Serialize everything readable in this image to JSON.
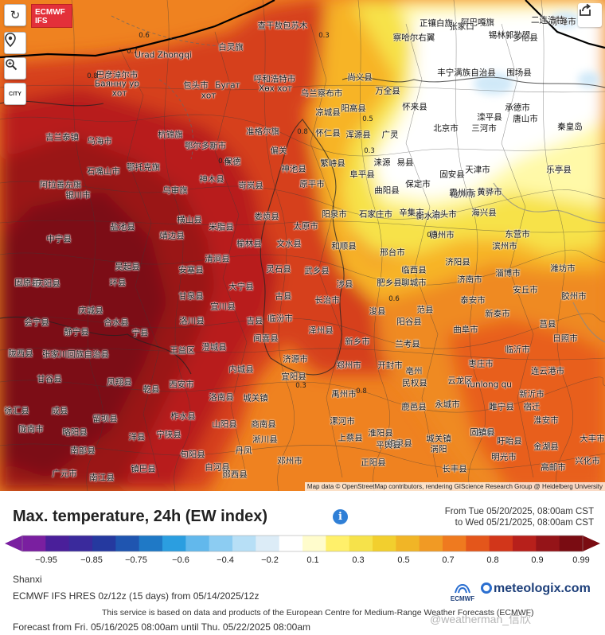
{
  "header": {
    "logo_line1": "ECMWF",
    "logo_line2": "IFS"
  },
  "controls": [
    {
      "name": "refresh-button",
      "icon": "refresh-icon",
      "glyph": "↻"
    },
    {
      "name": "location-button",
      "icon": "location-pin-icon",
      "glyph": "⚲"
    },
    {
      "name": "zoom-button",
      "icon": "magnifier-icon",
      "glyph": "🔍"
    },
    {
      "name": "city-toggle-button",
      "icon": "city-icon",
      "glyph": "CITY"
    }
  ],
  "share_icon": "share-icon",
  "map": {
    "attribution": "Map data © OpenStreetMap contributors, rendering GIScience Research Group @ Heidelberg University",
    "cities": [
      [
        "正镶白旗",
        548,
        30
      ],
      [
        "阿巴嘎旗",
        600,
        29
      ],
      [
        "赤峰市",
        708,
        28
      ],
      [
        "二连浩特",
        688,
        26
      ],
      [
        "锡林郭勒盟",
        640,
        45
      ],
      [
        "察哈尔右翼",
        520,
        48
      ],
      [
        "张家口",
        580,
        34
      ],
      [
        "多伦县",
        660,
        48
      ],
      [
        "查干敖包苏木",
        355,
        33
      ],
      [
        "巴彦淖尔市",
        147,
        95
      ],
      [
        "Баянну ур",
        147,
        106
      ],
      [
        "хот",
        150,
        118
      ],
      [
        "Urad Zhongqi",
        205,
        70
      ],
      [
        "包头市",
        246,
        108
      ],
      [
        "Бугат",
        286,
        108
      ],
      [
        "хот",
        262,
        121
      ],
      [
        "白灵旗",
        290,
        60
      ],
      [
        "呼和浩特市",
        345,
        100
      ],
      [
        "Хөх хот",
        346,
        112
      ],
      [
        "乌兰察布市",
        404,
        118
      ],
      [
        "尚义县",
        452,
        98
      ],
      [
        "万全县",
        487,
        115
      ],
      [
        "凉城县",
        412,
        142
      ],
      [
        "阳高县",
        444,
        137
      ],
      [
        "怀来县",
        521,
        135
      ],
      [
        "丰宁满族自治县",
        586,
        92
      ],
      [
        "围场县",
        652,
        92
      ],
      [
        "承德市",
        650,
        136
      ],
      [
        "滦平县",
        615,
        148
      ],
      [
        "吉兰泰镇",
        78,
        173
      ],
      [
        "乌海市",
        125,
        178
      ],
      [
        "杭锦旗",
        214,
        170
      ],
      [
        "鄂尔多斯市",
        258,
        184
      ],
      [
        "准格尔旗",
        330,
        166
      ],
      [
        "怀仁县",
        412,
        168
      ],
      [
        "浑源县",
        450,
        170
      ],
      [
        "广灵",
        490,
        170
      ],
      [
        "北京市",
        560,
        162
      ],
      [
        "三河市",
        608,
        162
      ],
      [
        "唐山市",
        660,
        150
      ],
      [
        "秦皇岛",
        716,
        160
      ],
      [
        "石嘴山市",
        130,
        216
      ],
      [
        "鄂托克旗",
        180,
        211
      ],
      [
        "神木县",
        266,
        226
      ],
      [
        "岢岚县",
        315,
        234
      ],
      [
        "原平市",
        392,
        232
      ],
      [
        "繁峙县",
        418,
        206
      ],
      [
        "易县",
        509,
        205
      ],
      [
        "涞源",
        480,
        205
      ],
      [
        "固安县",
        568,
        220
      ],
      [
        "天津市",
        600,
        214
      ],
      [
        "乐亭县",
        702,
        214
      ],
      [
        "阿拉善左旗",
        76,
        233
      ],
      [
        "银川市",
        98,
        246
      ],
      [
        "乌审旗",
        220,
        240
      ],
      [
        "保德",
        292,
        204
      ],
      [
        "偏关",
        350,
        190
      ],
      [
        "神池县",
        369,
        213
      ],
      [
        "保定市",
        525,
        232
      ],
      [
        "阜平县",
        455,
        220
      ],
      [
        "曲阳县",
        486,
        240
      ],
      [
        "沧州市",
        582,
        245
      ],
      [
        "黄骅市",
        615,
        242
      ],
      [
        "霸州市",
        580,
        243
      ],
      [
        "盐池县",
        154,
        286
      ],
      [
        "靖边县",
        216,
        297
      ],
      [
        "横山县",
        238,
        277
      ],
      [
        "米脂县",
        278,
        286
      ],
      [
        "娄烦县",
        335,
        273
      ],
      [
        "太原市",
        384,
        285
      ],
      [
        "阳泉市",
        420,
        270
      ],
      [
        "石家庄市",
        472,
        270
      ],
      [
        "辛集市",
        517,
        268
      ],
      [
        "衡水市",
        538,
        272
      ],
      [
        "泊头市",
        558,
        270
      ],
      [
        "海兴县",
        608,
        268
      ],
      [
        "中宁县",
        74,
        301
      ],
      [
        "文水县",
        363,
        307
      ],
      [
        "榆林县",
        313,
        307
      ],
      [
        "和顺县",
        432,
        310
      ],
      [
        "邢台市",
        493,
        318
      ],
      [
        "德州市",
        555,
        296
      ],
      [
        "东营市",
        650,
        295
      ],
      [
        "滨州市",
        634,
        310
      ],
      [
        "吴起县",
        160,
        336
      ],
      [
        "安塞县",
        240,
        340
      ],
      [
        "清涧县",
        273,
        326
      ],
      [
        "灵石县",
        350,
        339
      ],
      [
        "武乡县",
        398,
        341
      ],
      [
        "临西县",
        520,
        340
      ],
      [
        "济阳县",
        575,
        330
      ],
      [
        "淄博市",
        638,
        344
      ],
      [
        "潍坊市",
        707,
        338
      ],
      [
        "固原县",
        34,
        356
      ],
      [
        "庆阳县",
        60,
        357
      ],
      [
        "环县",
        148,
        356
      ],
      [
        "甘泉县",
        240,
        373
      ],
      [
        "大宁县",
        303,
        361
      ],
      [
        "古县",
        356,
        373
      ],
      [
        "长治市",
        411,
        378
      ],
      [
        "涉县",
        433,
        358
      ],
      [
        "肥乡县",
        489,
        356
      ],
      [
        "聊城市",
        520,
        356
      ],
      [
        "济南市",
        590,
        352
      ],
      [
        "泰安市",
        594,
        378
      ],
      [
        "安丘市",
        660,
        365
      ],
      [
        "胶州市",
        721,
        373
      ],
      [
        "会宁县",
        46,
        406
      ],
      [
        "庆城县",
        114,
        391
      ],
      [
        "合水县",
        146,
        406
      ],
      [
        "宜川县",
        280,
        386
      ],
      [
        "吉县",
        320,
        404
      ],
      [
        "泽州县",
        403,
        416
      ],
      [
        "临汾市",
        352,
        401
      ],
      [
        "浚县",
        474,
        392
      ],
      [
        "范县",
        534,
        390
      ],
      [
        "新泰市",
        625,
        395
      ],
      [
        "日照市",
        710,
        426
      ],
      [
        "莒县",
        688,
        408
      ],
      [
        "静宁县",
        96,
        418
      ],
      [
        "洛川县",
        241,
        404
      ],
      [
        "宁县",
        176,
        419
      ],
      [
        "闻喜县",
        334,
        426
      ],
      [
        "新乡市",
        449,
        430
      ],
      [
        "阳谷县",
        514,
        405
      ],
      [
        "曲阜市",
        585,
        415
      ],
      [
        "临沂市",
        650,
        440
      ],
      [
        "陇西县",
        26,
        445
      ],
      [
        "张家川回族自治县",
        95,
        446
      ],
      [
        "王益区",
        229,
        441
      ],
      [
        "澄城县",
        269,
        437
      ],
      [
        "济源市",
        371,
        452
      ],
      [
        "开封市",
        490,
        460
      ],
      [
        "郑州市",
        438,
        460
      ],
      [
        "兰考县",
        512,
        433
      ],
      [
        "亳州",
        520,
        467
      ],
      [
        "枣庄市",
        604,
        458
      ],
      [
        "连云港市",
        688,
        467
      ],
      [
        "甘谷县",
        62,
        477
      ],
      [
        "凤翔县",
        150,
        481
      ],
      [
        "乾县",
        190,
        490
      ],
      [
        "西安市",
        228,
        484
      ],
      [
        "内城县",
        303,
        465
      ],
      [
        "宜阳县",
        369,
        474
      ],
      [
        "Yunlong qu",
        614,
        484
      ],
      [
        "云龙区",
        578,
        479
      ],
      [
        "新沂市",
        668,
        496
      ],
      [
        "民权县",
        521,
        482
      ],
      [
        "徐汇县",
        21,
        517
      ],
      [
        "成县",
        75,
        517
      ],
      [
        "留坝县",
        132,
        527
      ],
      [
        "柞水县",
        230,
        524
      ],
      [
        "洛南县",
        278,
        500
      ],
      [
        "城关镇",
        321,
        501
      ],
      [
        "禹州市",
        432,
        496
      ],
      [
        "鹿邑县",
        520,
        512
      ],
      [
        "永城市",
        562,
        509
      ],
      [
        "睢宁县",
        630,
        512
      ],
      [
        "宿迁",
        668,
        512
      ],
      [
        "陇南市",
        39,
        540
      ],
      [
        "略阳县",
        94,
        544
      ],
      [
        "洋县",
        172,
        550
      ],
      [
        "宁陕县",
        212,
        547
      ],
      [
        "山阳县",
        282,
        534
      ],
      [
        "商南县",
        331,
        534
      ],
      [
        "漯河市",
        430,
        530
      ],
      [
        "淮阳县",
        478,
        545
      ],
      [
        "蚌埠",
        608,
        545
      ],
      [
        "淮安市",
        686,
        529
      ],
      [
        "南部县",
        104,
        567
      ],
      [
        "旬阳县",
        242,
        572
      ],
      [
        "淅川县",
        333,
        553
      ],
      [
        "上蔡县",
        440,
        551
      ],
      [
        "城关镇",
        551,
        552
      ],
      [
        "固镇县",
        606,
        544
      ],
      [
        "盱眙县",
        640,
        555
      ],
      [
        "金湖县",
        686,
        562
      ],
      [
        "大丰市",
        744,
        552
      ],
      [
        "广元市",
        81,
        596
      ],
      [
        "南江县",
        128,
        601
      ],
      [
        "镇巴县",
        180,
        590
      ],
      [
        "白河县",
        273,
        588
      ],
      [
        "邓州市",
        364,
        580
      ],
      [
        "正阳县",
        469,
        582
      ],
      [
        "临泉县",
        502,
        558
      ],
      [
        "长丰县",
        571,
        590
      ],
      [
        "明光市",
        633,
        575
      ],
      [
        "高邮市",
        695,
        588
      ],
      [
        "兴化市",
        738,
        580
      ],
      [
        "丹凤",
        306,
        567
      ],
      [
        "平舆县",
        488,
        560
      ],
      [
        "涡阳",
        551,
        565
      ],
      [
        "郧西县",
        295,
        597
      ]
    ],
    "isolines": [
      [
        "0.6",
        181,
        45
      ],
      [
        "0.7",
        166,
        65
      ],
      [
        "0.8",
        116,
        96
      ],
      [
        "0.3",
        407,
        45
      ],
      [
        "0.5",
        462,
        150
      ],
      [
        "0.3",
        464,
        190
      ],
      [
        "0.8",
        380,
        166
      ],
      [
        "0.8",
        281,
        203
      ],
      [
        "0.6",
        495,
        376
      ],
      [
        "0.3",
        543,
        296
      ],
      [
        "0.3",
        378,
        485
      ],
      [
        "0.8",
        454,
        492
      ]
    ]
  },
  "panel": {
    "title": "Max. temperature, 24h (EW index)",
    "info_icon": "info-icon",
    "range_from": "From Tue 05/20/2025, 08:00am CST",
    "range_to": "to Wed 05/21/2025, 08:00am CST",
    "region": "Shanxi",
    "model": "ECMWF IFS HRES 0z/12z (15 days) from 05/14/2025/12z",
    "service": "This service is based on data and products of the European Centre for Medium-Range Weather Forecasts (ECMWF)",
    "forecast": "Forecast from Fri. 05/16/2025 08:00am until Thu. 05/22/2025 08:00am",
    "ecmwf_small": "ECMWF",
    "brand": "meteologix.com",
    "watermark": "@weatherman_信欣"
  },
  "colorbar": {
    "ticks": [
      "−0.95",
      "−0.85",
      "−0.75",
      "−0.6",
      "−0.4",
      "−0.2",
      "0.1",
      "0.3",
      "0.5",
      "0.7",
      "0.8",
      "0.9",
      "0.99"
    ],
    "colors": [
      "#7a1fa0",
      "#4a1f9a",
      "#3a2a9c",
      "#25399f",
      "#1f55b0",
      "#1f79c6",
      "#2b9ee0",
      "#62b8ec",
      "#8cccf2",
      "#b7dff6",
      "#dcecf7",
      "#ffffff",
      "#fffccc",
      "#fff06a",
      "#f6e24a",
      "#f2cf2e",
      "#f1b526",
      "#f19a24",
      "#ef7a1f",
      "#e4561b",
      "#d2361a",
      "#b7201b",
      "#951418",
      "#7a0c12"
    ]
  }
}
